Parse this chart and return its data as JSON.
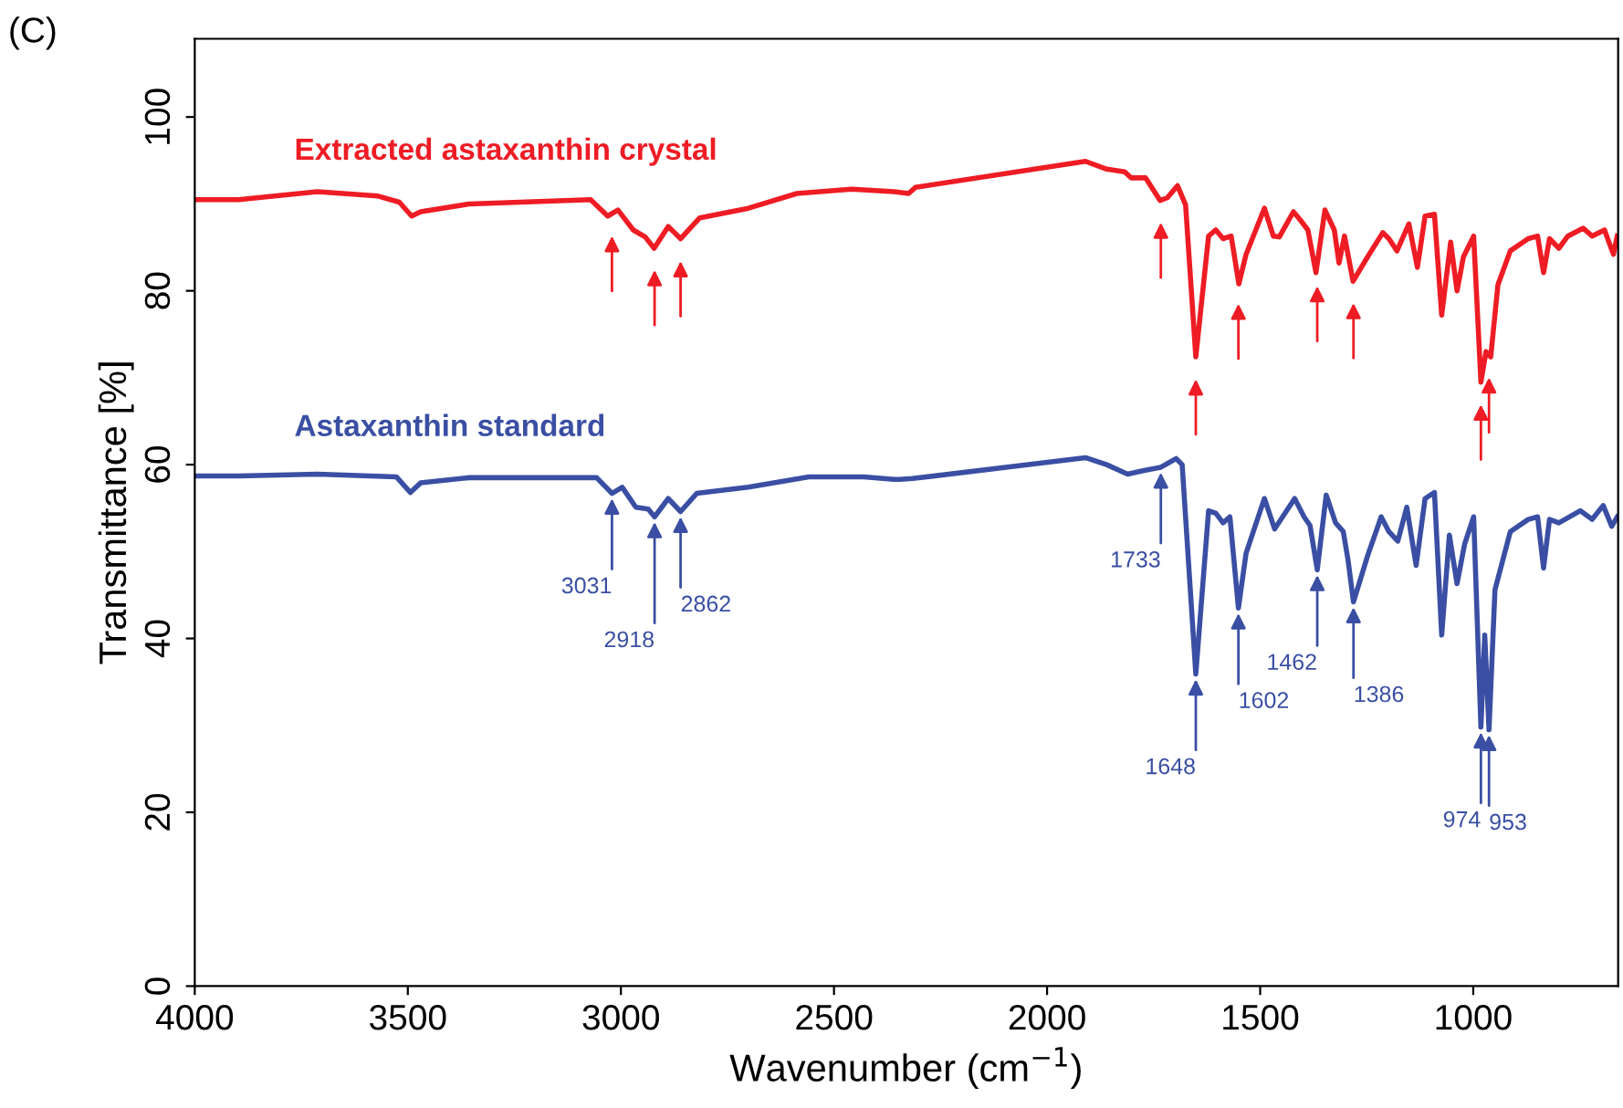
{
  "chart_data": {
    "type": "line",
    "xlabel": "Wavenumber (cm$^{−1}$)",
    "ylabel": "Transmittance [%]",
    "xlim": [
      4000,
      660
    ],
    "ylim": [
      0,
      109
    ],
    "xticks": [
      4000,
      3500,
      3000,
      2500,
      2000,
      1500,
      1000
    ],
    "yticks": [
      0,
      20,
      40,
      60,
      80,
      100
    ],
    "grid": false,
    "legend": false,
    "marker": "none",
    "line_style": "solid",
    "series": [
      {
        "name": "Extracted astaxanthin crystal",
        "color": "#ee1c24",
        "x": [
          3997,
          3897,
          3712,
          3570,
          3520,
          3491,
          3470,
          3356,
          3071,
          3031,
          3007,
          2971,
          2943,
          2922,
          2889,
          2860,
          2815,
          2701,
          2587,
          2459,
          2359,
          2325,
          2309,
          1910,
          1860,
          1818,
          1803,
          1769,
          1735,
          1718,
          1694,
          1675,
          1651,
          1621,
          1604,
          1587,
          1568,
          1550,
          1533,
          1490,
          1469,
          1455,
          1422,
          1405,
          1388,
          1369,
          1348,
          1326,
          1315,
          1302,
          1282,
          1248,
          1212,
          1198,
          1179,
          1151,
          1131,
          1113,
          1091,
          1074,
          1053,
          1038,
          1023,
          999,
          982,
          970,
          959,
          942,
          913,
          871,
          849,
          835,
          821,
          799,
          778,
          742,
          721,
          692,
          671,
          662
        ],
        "values": [
          90.5,
          90.5,
          91.4,
          90.9,
          90.2,
          88.6,
          89.1,
          90.0,
          90.5,
          88.6,
          89.3,
          87.0,
          86.2,
          84.9,
          87.4,
          86.0,
          88.4,
          89.5,
          91.2,
          91.7,
          91.4,
          91.2,
          91.9,
          94.9,
          94.0,
          93.7,
          93.0,
          93.0,
          90.4,
          90.7,
          92.1,
          89.9,
          72.4,
          86.3,
          87.0,
          86.0,
          86.3,
          80.8,
          84.2,
          89.5,
          86.3,
          86.2,
          89.1,
          88.1,
          87.0,
          82.1,
          89.3,
          87.0,
          83.2,
          86.3,
          81.1,
          83.9,
          86.7,
          86.0,
          84.6,
          87.7,
          82.7,
          88.6,
          88.8,
          77.2,
          85.6,
          80.0,
          83.9,
          86.3,
          69.5,
          73.0,
          72.4,
          80.7,
          84.6,
          86.0,
          86.3,
          82.1,
          86.0,
          84.9,
          86.3,
          87.2,
          86.3,
          87.0,
          84.2,
          86.3
        ]
      },
      {
        "name": "Astaxanthin standard",
        "color": "#3a4fa3",
        "x": [
          3997,
          3897,
          3712,
          3527,
          3494,
          3470,
          3356,
          3057,
          3021,
          2997,
          2965,
          2936,
          2921,
          2889,
          2860,
          2822,
          2701,
          2559,
          2430,
          2359,
          2345,
          2316,
          1910,
          1860,
          1811,
          1775,
          1733,
          1697,
          1683,
          1651,
          1621,
          1604,
          1587,
          1571,
          1551,
          1533,
          1490,
          1466,
          1419,
          1397,
          1383,
          1366,
          1345,
          1323,
          1305,
          1294,
          1281,
          1248,
          1216,
          1198,
          1177,
          1156,
          1134,
          1113,
          1091,
          1074,
          1056,
          1038,
          1020,
          999,
          982,
          973,
          963,
          949,
          913,
          871,
          849,
          835,
          821,
          799,
          749,
          721,
          695,
          675,
          662
        ],
        "values": [
          58.7,
          58.7,
          58.9,
          58.6,
          56.8,
          57.9,
          58.5,
          58.5,
          56.7,
          57.4,
          55.1,
          54.9,
          54.0,
          56.1,
          54.6,
          56.7,
          57.4,
          58.6,
          58.6,
          58.3,
          58.3,
          58.4,
          60.8,
          60.0,
          58.9,
          59.3,
          59.7,
          60.7,
          60.0,
          35.9,
          54.7,
          54.4,
          53.3,
          54.0,
          43.5,
          49.8,
          56.1,
          52.6,
          56.1,
          54.0,
          53.0,
          47.9,
          56.5,
          53.3,
          52.3,
          49.1,
          44.2,
          49.5,
          54.0,
          52.3,
          51.2,
          55.1,
          48.4,
          56.1,
          56.8,
          40.4,
          51.9,
          46.3,
          50.9,
          54.0,
          29.8,
          40.4,
          29.5,
          45.6,
          52.3,
          53.7,
          54.0,
          48.1,
          53.7,
          53.3,
          54.7,
          53.7,
          55.3,
          52.9,
          54.0
        ]
      }
    ],
    "annotations": [
      "(C)",
      {
        "text": "3031",
        "x": 3021,
        "y": 56.7
      },
      {
        "text": "2918",
        "x": 2921,
        "y": 54.0
      },
      {
        "text": "2862",
        "x": 2860,
        "y": 54.6
      },
      {
        "text": "1733",
        "x": 1733,
        "y": 59.7
      },
      {
        "text": "1648",
        "x": 1651,
        "y": 35.9
      },
      {
        "text": "1602",
        "x": 1551,
        "y": 43.5
      },
      {
        "text": "1462",
        "x": 1366,
        "y": 47.9
      },
      {
        "text": "1386",
        "x": 1281,
        "y": 44.2
      },
      {
        "text": "974",
        "x": 982,
        "y": 29.8
      },
      {
        "text": "953",
        "x": 963,
        "y": 29.5
      }
    ]
  }
}
